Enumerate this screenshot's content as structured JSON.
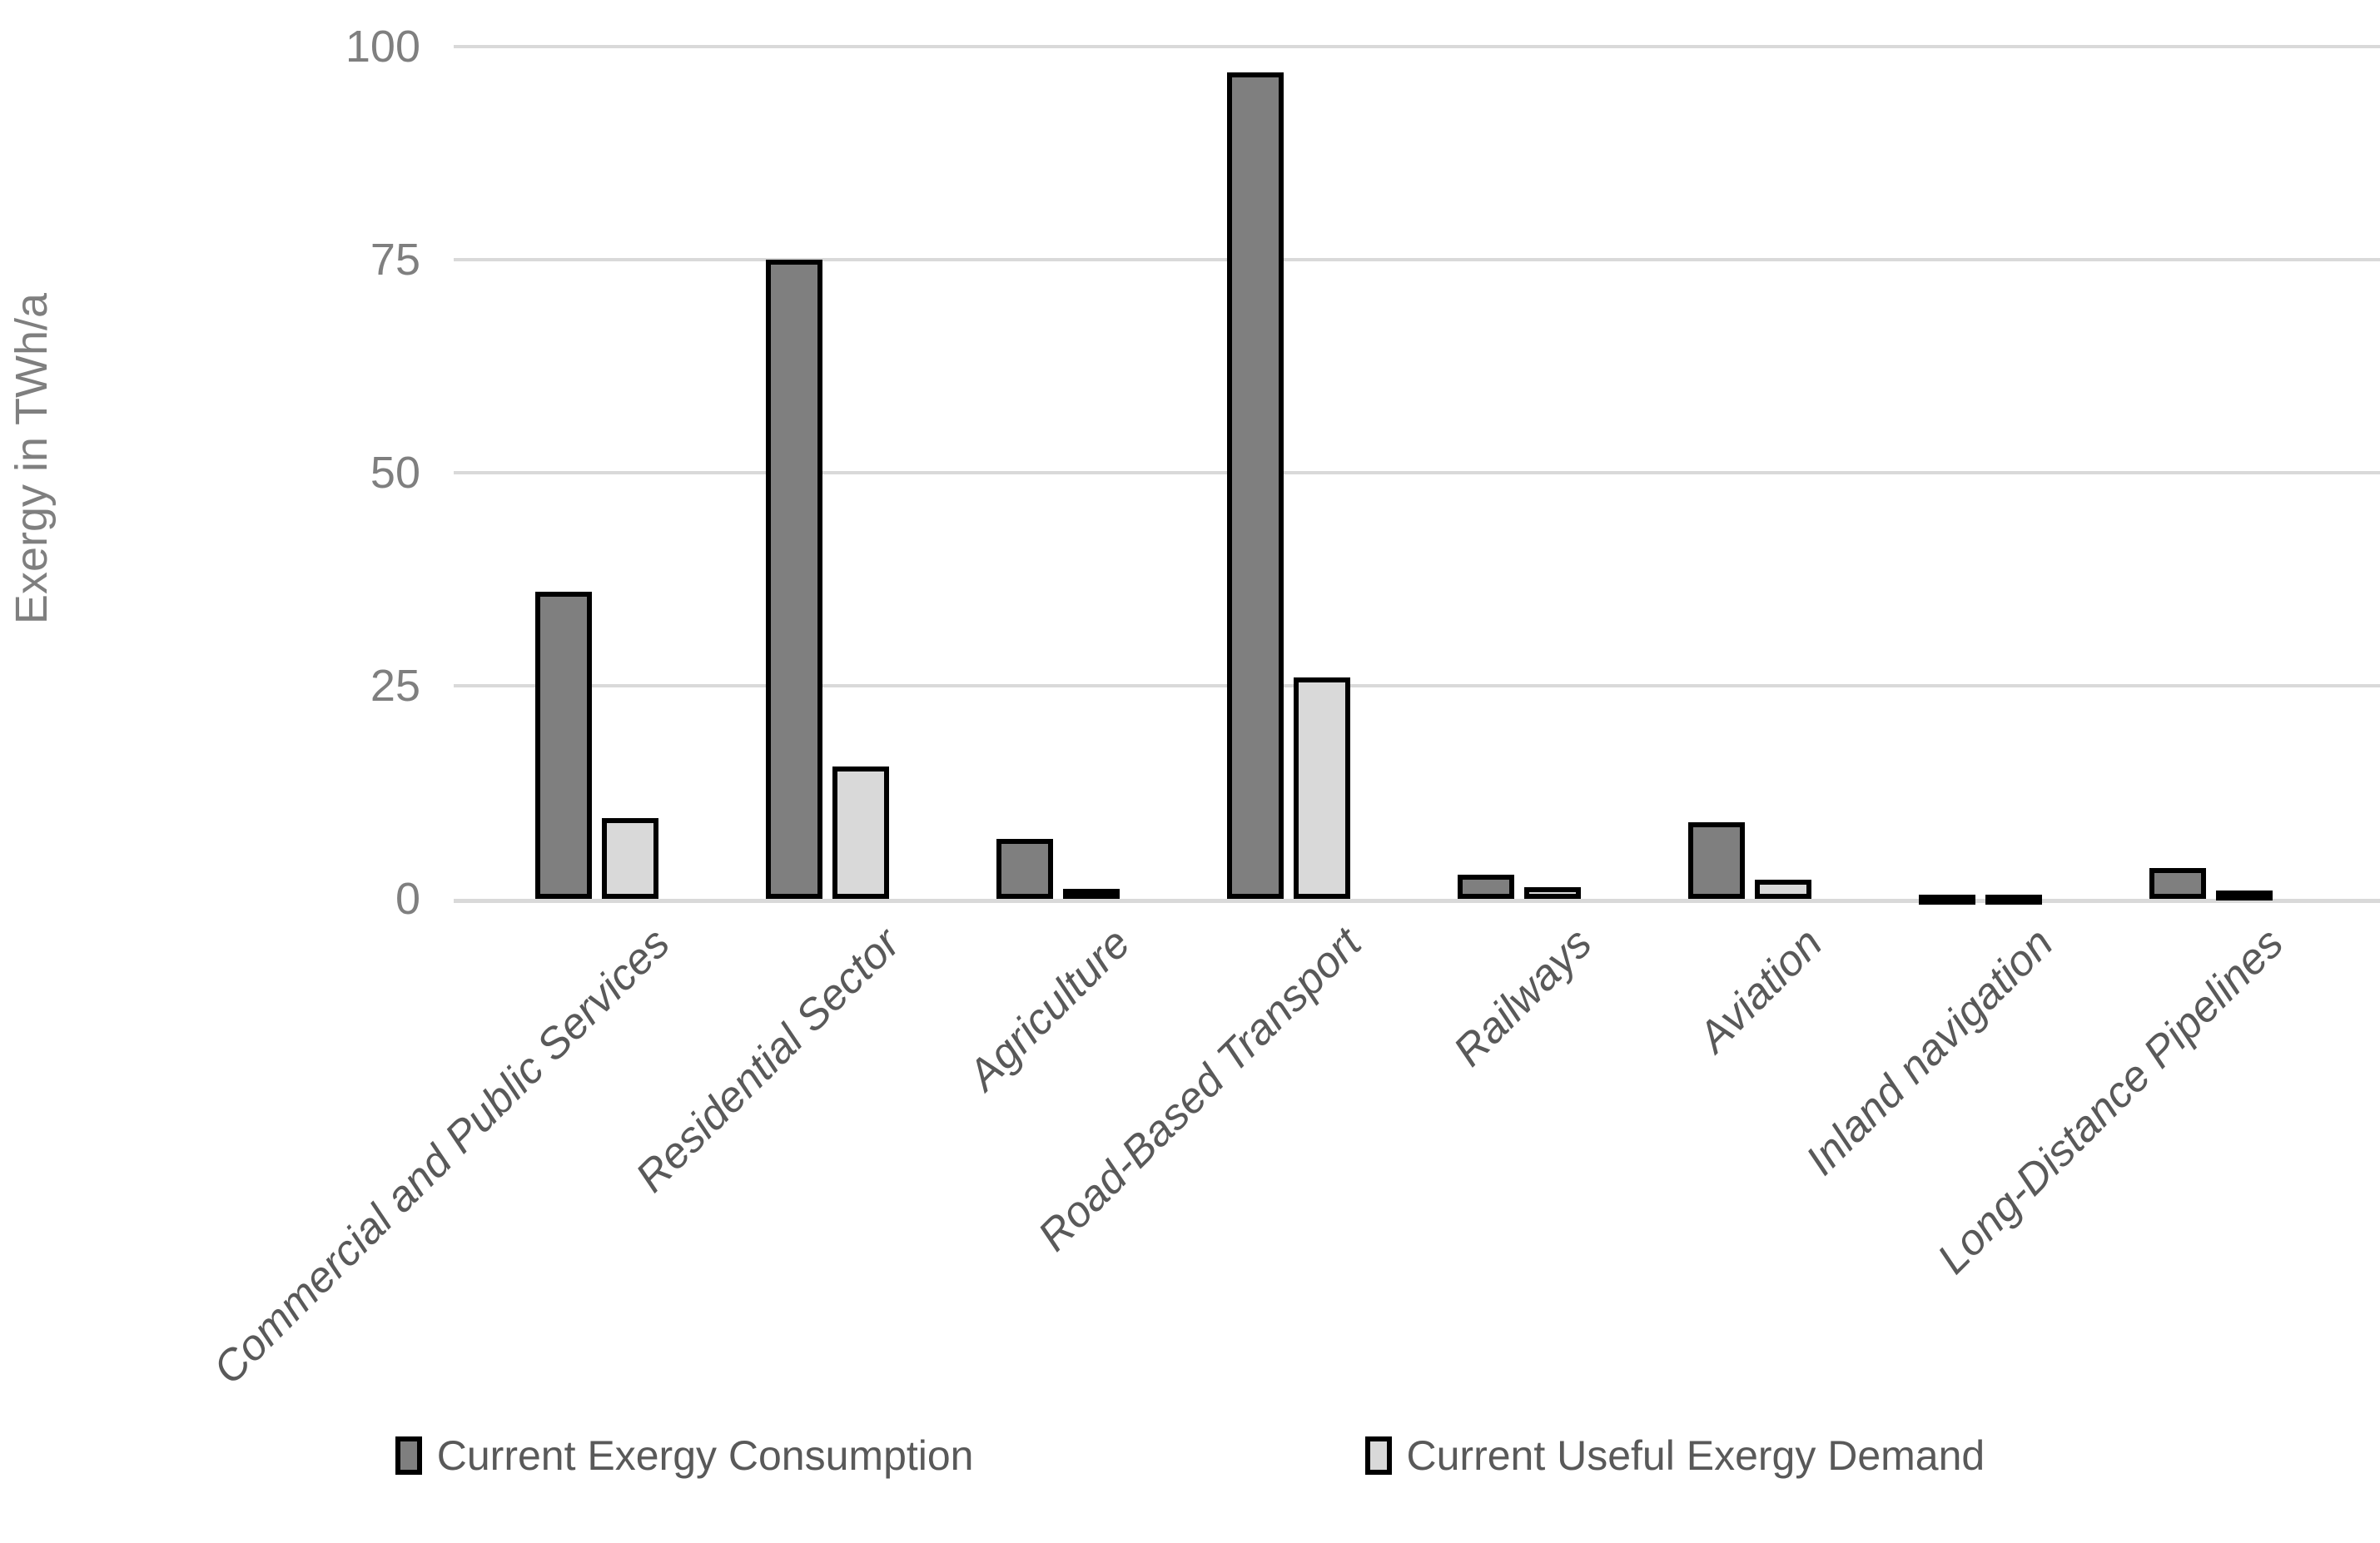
{
  "chart_data": {
    "type": "bar",
    "title": "",
    "xlabel": "",
    "ylabel": "Exergy in TWh/a",
    "ylim": [
      0,
      100
    ],
    "yticks": [
      0,
      25,
      50,
      75,
      100
    ],
    "grid": true,
    "legend_position": "bottom-center",
    "categories": [
      "Commercial and Public Services",
      "Residential Sector",
      "Agriculture",
      "Road-Based Transport",
      "Railways",
      "Aviation",
      "Inland navigation",
      "Long-Distance Pipelines"
    ],
    "series": [
      {
        "name": "Current Exergy Consumption",
        "color": "#7F7F7F",
        "values": [
          36,
          75,
          7,
          97,
          2.8,
          9,
          0.5,
          3.6
        ]
      },
      {
        "name": "Current Useful Exergy Demand",
        "color": "#D9D9D9",
        "values": [
          9.5,
          15.5,
          1.2,
          26,
          1.4,
          2.2,
          0.3,
          1
        ]
      }
    ],
    "bar_border_color": "#000000",
    "gridline_color": "#D9D9D9",
    "axis_text_color": "#7F7F7F",
    "category_text_color": "#595959"
  }
}
